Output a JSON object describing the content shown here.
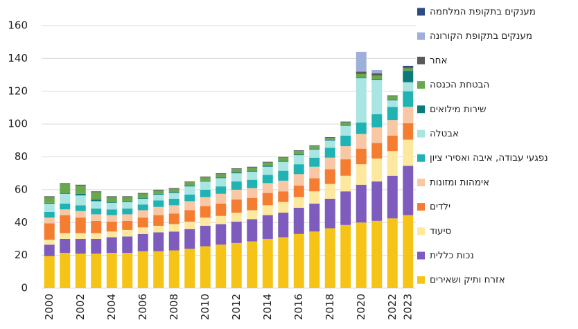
{
  "chart_data": {
    "type": "stacked_bar",
    "categories": [
      "2000",
      null,
      "2002",
      null,
      "2004",
      null,
      "2006",
      null,
      "2008",
      null,
      "2010",
      null,
      "2012",
      null,
      "2014",
      null,
      "2016",
      null,
      "2018",
      null,
      "2020",
      null,
      "2022",
      "2023"
    ],
    "ylim": [
      0,
      160
    ],
    "yticks": [
      0,
      20,
      40,
      60,
      80,
      100,
      120,
      140,
      160
    ],
    "grid": true,
    "legend": "right",
    "series": [
      {
        "name": "אזרח ותיק ושאירים",
        "color": "#f6c416",
        "values": [
          19.5,
          21.5,
          21,
          21,
          21.5,
          21.5,
          22.5,
          22.5,
          23,
          24,
          25.5,
          26.5,
          27.5,
          28.5,
          30,
          31,
          33,
          34.5,
          36.5,
          38.5,
          40,
          41,
          42.5,
          44.5
        ]
      },
      {
        "name": "נכות כללית",
        "color": "#7d5cbd",
        "values": [
          7,
          8.5,
          9,
          9,
          9.5,
          10,
          10.5,
          11.5,
          11.5,
          12,
          12.5,
          12.5,
          13,
          13.5,
          14.5,
          15,
          16,
          17,
          18,
          20.5,
          23,
          24,
          26,
          30
        ]
      },
      {
        "name": "סיעוד",
        "color": "#fde8a0",
        "values": [
          3,
          3.5,
          3.5,
          3.5,
          3.5,
          4,
          4,
          4,
          4.5,
          4.5,
          5,
          5,
          5.5,
          5.5,
          6,
          6.5,
          6.5,
          7.5,
          9,
          9.5,
          12.5,
          14,
          15,
          16
        ]
      },
      {
        "name": "ילדים",
        "color": "#f47d31",
        "values": [
          10,
          11,
          9.5,
          7.5,
          6,
          5.5,
          6,
          6.5,
          6.5,
          7,
          7,
          7.5,
          8,
          7.5,
          7.5,
          6.5,
          7,
          8,
          9,
          10,
          9.5,
          9.5,
          9.5,
          10
        ]
      },
      {
        "name": "אימהות ומזונות",
        "color": "#f9c7a4",
        "values": [
          3.5,
          3.5,
          4,
          4,
          4,
          4,
          4.5,
          5,
          5,
          5.5,
          5.5,
          6,
          6,
          6,
          6,
          6.5,
          7,
          7,
          7,
          8,
          9,
          9.5,
          9.5,
          10
        ]
      },
      {
        "name": "נפגעי עבודה, איבה ואסירי ציון",
        "color": "#1fb3b3",
        "values": [
          3.5,
          3.5,
          3.5,
          3.5,
          3.5,
          3.5,
          3.5,
          4,
          4,
          4,
          4.5,
          4.5,
          5,
          5,
          5,
          6,
          6,
          5.5,
          6,
          6.5,
          7,
          8,
          8,
          9.5
        ]
      },
      {
        "name": "אבטלה",
        "color": "#a9e5e3",
        "values": [
          5,
          6,
          6,
          4.5,
          4,
          4,
          3.5,
          3.5,
          3.5,
          5,
          5,
          5,
          5,
          5,
          5,
          5.5,
          5.5,
          5,
          4.5,
          6,
          27,
          21,
          4,
          5.5
        ]
      },
      {
        "name": "שירות מילואים",
        "color": "#0b7b7a",
        "values": [
          0.5,
          0.5,
          1,
          1,
          0.5,
          0.5,
          0.5,
          0.5,
          0.5,
          0.5,
          0.5,
          0.5,
          0.5,
          0.5,
          0.5,
          0.5,
          0.5,
          0.5,
          0.5,
          0.5,
          0.5,
          0.5,
          0.5,
          7
        ]
      },
      {
        "name": "הבטחת הכנסה",
        "color": "#6aa84f",
        "values": [
          3.5,
          5.5,
          5,
          4.5,
          3,
          2.5,
          2.5,
          2,
          2,
          2,
          2,
          2,
          2,
          2,
          2,
          2,
          2,
          1.5,
          1,
          1.5,
          2,
          2,
          2,
          1.5
        ]
      },
      {
        "name": "אחר",
        "color": "#5a5a5a",
        "values": [
          0.5,
          0.5,
          0.5,
          0.5,
          0.5,
          0.5,
          0.5,
          0.5,
          0.5,
          0.5,
          0.5,
          0.5,
          0.5,
          0.5,
          0.5,
          0.5,
          0.5,
          0.5,
          0.5,
          0.5,
          1.5,
          1.5,
          0.5,
          0.5
        ]
      },
      {
        "name": "מענקים בתקופת הקורונה",
        "color": "#9eb0da",
        "values": [
          0,
          0,
          0,
          0,
          0,
          0,
          0,
          0,
          0,
          0,
          0,
          0,
          0,
          0,
          0,
          0,
          0,
          0,
          0,
          0,
          12,
          2,
          0,
          0
        ]
      },
      {
        "name": "מענקים בתקופת המלחמה",
        "color": "#2d4b82",
        "values": [
          0,
          0,
          0,
          0,
          0,
          0,
          0,
          0,
          0,
          0,
          0,
          0,
          0,
          0,
          0,
          0,
          0,
          0,
          0,
          0,
          0,
          0,
          0,
          1
        ]
      }
    ]
  }
}
